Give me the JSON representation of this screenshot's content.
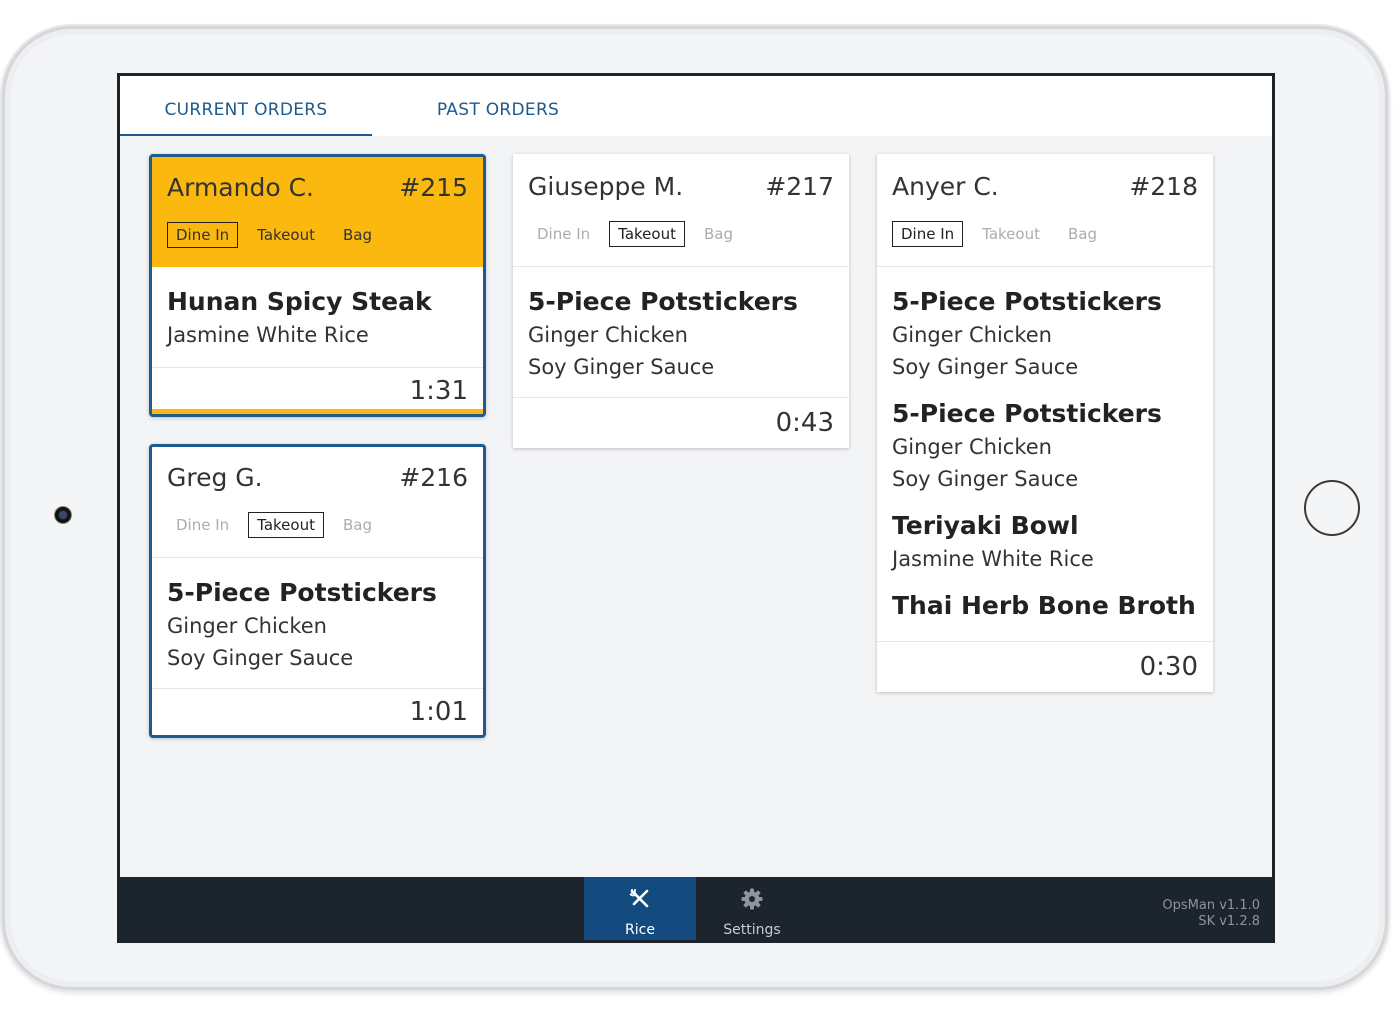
{
  "tabs": {
    "current": "CURRENT ORDERS",
    "past": "PAST ORDERS"
  },
  "colors": {
    "accent": "#1e5a8c",
    "alert": "#fbb80f",
    "bar": "#1c252d",
    "nav_active": "#134b7e"
  },
  "orders": [
    {
      "customer": "Armando C.",
      "number": "#215",
      "timer": "1:31",
      "options": [
        "Dine In",
        "Takeout",
        "Bag"
      ],
      "selected_option": "Dine In",
      "items": [
        {
          "name": "Hunan Spicy Steak",
          "mods": [
            "Jasmine White Rice"
          ]
        }
      ]
    },
    {
      "customer": "Greg G.",
      "number": "#216",
      "timer": "1:01",
      "options": [
        "Dine In",
        "Takeout",
        "Bag"
      ],
      "selected_option": "Takeout",
      "items": [
        {
          "name": "5-Piece Potstickers",
          "mods": [
            "Ginger Chicken",
            "Soy Ginger Sauce"
          ]
        }
      ]
    },
    {
      "customer": "Giuseppe M.",
      "number": "#217",
      "timer": "0:43",
      "options": [
        "Dine In",
        "Takeout",
        "Bag"
      ],
      "selected_option": "Takeout",
      "items": [
        {
          "name": "5-Piece Potstickers",
          "mods": [
            "Ginger Chicken",
            "Soy Ginger Sauce"
          ]
        }
      ]
    },
    {
      "customer": "Anyer C.",
      "number": "#218",
      "timer": "0:30",
      "options": [
        "Dine In",
        "Takeout",
        "Bag"
      ],
      "selected_option": "Dine In",
      "items": [
        {
          "name": "5-Piece Potstickers",
          "mods": [
            "Ginger Chicken",
            "Soy Ginger Sauce"
          ]
        },
        {
          "name": "5-Piece Potstickers",
          "mods": [
            "Ginger Chicken",
            "Soy Ginger Sauce"
          ]
        },
        {
          "name": "Teriyaki Bowl",
          "mods": [
            "Jasmine White Rice"
          ]
        },
        {
          "name": "Thai Herb Bone Broth",
          "mods": []
        }
      ]
    }
  ],
  "nav": {
    "rice": {
      "label": "Rice",
      "icon": "utensils-icon"
    },
    "settings": {
      "label": "Settings",
      "icon": "gear-icon"
    }
  },
  "version": {
    "app": "OpsMan v1.1.0",
    "sk": "SK v1.2.8"
  }
}
